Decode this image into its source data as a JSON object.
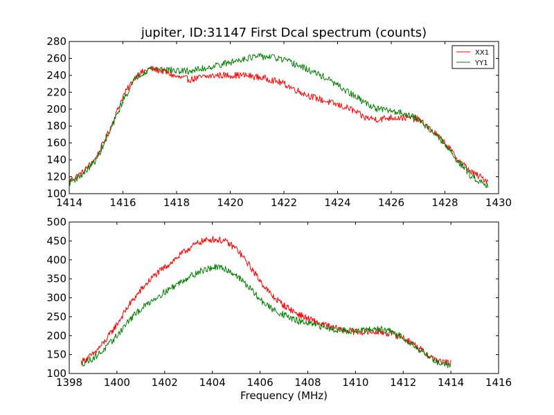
{
  "chart_data": [
    {
      "type": "line",
      "title": "jupiter, ID:31147 First Dcal spectrum (counts)",
      "xlabel": "",
      "ylabel": "",
      "xlim": [
        1414,
        1430
      ],
      "ylim": [
        100,
        280
      ],
      "xticks": [
        "1414",
        "1416",
        "1418",
        "1420",
        "1422",
        "1424",
        "1426",
        "1428",
        "1430"
      ],
      "yticks": [
        "100",
        "120",
        "140",
        "160",
        "180",
        "200",
        "220",
        "240",
        "260",
        "280"
      ],
      "legend": {
        "placement": "top-right",
        "entries": [
          "XX1",
          "YY1"
        ]
      },
      "series": [
        {
          "name": "XX1",
          "color": "#ff0000",
          "x": [
            1414.0,
            1414.5,
            1415.0,
            1415.5,
            1416.0,
            1416.5,
            1417.0,
            1417.5,
            1418.0,
            1418.5,
            1419.0,
            1419.5,
            1420.0,
            1420.5,
            1421.0,
            1421.5,
            1422.0,
            1422.5,
            1423.0,
            1423.5,
            1424.0,
            1424.5,
            1425.0,
            1425.5,
            1426.0,
            1426.5,
            1427.0,
            1427.5,
            1428.0,
            1428.5,
            1429.0,
            1429.6
          ],
          "y": [
            115,
            125,
            142,
            175,
            215,
            240,
            248,
            245,
            238,
            235,
            238,
            240,
            240,
            240,
            238,
            235,
            230,
            222,
            215,
            210,
            205,
            200,
            190,
            188,
            190,
            190,
            188,
            175,
            160,
            140,
            125,
            115
          ]
        },
        {
          "name": "YY1",
          "color": "#008000",
          "x": [
            1414.0,
            1414.5,
            1415.0,
            1415.5,
            1416.0,
            1416.5,
            1417.0,
            1417.5,
            1418.0,
            1418.5,
            1419.0,
            1419.5,
            1420.0,
            1420.5,
            1421.0,
            1421.5,
            1422.0,
            1422.5,
            1423.0,
            1423.5,
            1424.0,
            1424.5,
            1425.0,
            1425.5,
            1426.0,
            1426.5,
            1427.0,
            1427.5,
            1428.0,
            1428.5,
            1429.0,
            1429.6
          ],
          "y": [
            113,
            123,
            140,
            172,
            210,
            238,
            248,
            248,
            245,
            245,
            248,
            252,
            255,
            260,
            262,
            262,
            258,
            252,
            245,
            238,
            228,
            218,
            208,
            200,
            198,
            195,
            188,
            175,
            158,
            138,
            120,
            110
          ]
        }
      ]
    },
    {
      "type": "line",
      "title": "",
      "xlabel": "Frequency (MHz)",
      "ylabel": "",
      "xlim": [
        1398,
        1416
      ],
      "ylim": [
        100,
        500
      ],
      "xticks": [
        "1398",
        "1400",
        "1402",
        "1404",
        "1406",
        "1408",
        "1410",
        "1412",
        "1414",
        "1416"
      ],
      "yticks": [
        "100",
        "150",
        "200",
        "250",
        "300",
        "350",
        "400",
        "450",
        "500"
      ],
      "series": [
        {
          "color": "#ff0000",
          "x": [
            1398.5,
            1399.0,
            1399.5,
            1400.0,
            1400.5,
            1401.0,
            1401.5,
            1402.0,
            1402.5,
            1403.0,
            1403.5,
            1404.0,
            1404.5,
            1405.0,
            1405.5,
            1406.0,
            1406.5,
            1407.0,
            1407.5,
            1408.0,
            1408.5,
            1409.0,
            1409.5,
            1410.0,
            1410.5,
            1411.0,
            1411.5,
            1412.0,
            1412.5,
            1413.0,
            1413.5,
            1414.0
          ],
          "y": [
            130,
            150,
            185,
            230,
            280,
            320,
            355,
            380,
            405,
            430,
            448,
            455,
            450,
            430,
            390,
            345,
            305,
            280,
            260,
            245,
            232,
            222,
            215,
            210,
            210,
            210,
            205,
            195,
            175,
            150,
            132,
            128
          ]
        },
        {
          "color": "#008000",
          "x": [
            1398.5,
            1399.0,
            1399.5,
            1400.0,
            1400.5,
            1401.0,
            1401.5,
            1402.0,
            1402.5,
            1403.0,
            1403.5,
            1404.0,
            1404.5,
            1405.0,
            1405.5,
            1406.0,
            1406.5,
            1407.0,
            1407.5,
            1408.0,
            1408.5,
            1409.0,
            1409.5,
            1410.0,
            1410.5,
            1411.0,
            1411.5,
            1412.0,
            1412.5,
            1413.0,
            1413.5,
            1414.0
          ],
          "y": [
            125,
            140,
            165,
            200,
            240,
            270,
            295,
            315,
            335,
            355,
            370,
            380,
            378,
            360,
            330,
            295,
            270,
            255,
            240,
            232,
            225,
            218,
            214,
            212,
            214,
            218,
            210,
            195,
            172,
            148,
            128,
            122
          ]
        }
      ]
    }
  ]
}
